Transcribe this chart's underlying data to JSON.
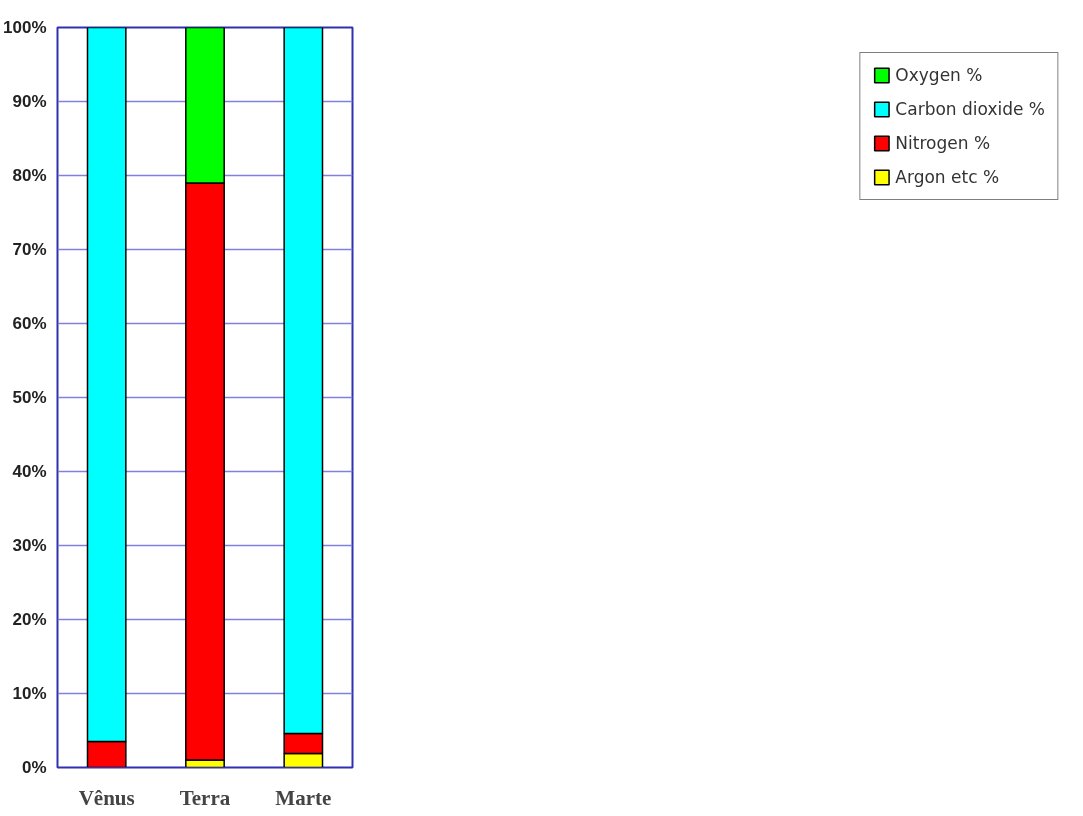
{
  "chart_data": {
    "type": "bar",
    "stacked": true,
    "categories": [
      "Vênus",
      "Terra",
      "Marte"
    ],
    "series": [
      {
        "name": "Argon etc %",
        "color": "#ffff00",
        "values": [
          null,
          1,
          1.9
        ]
      },
      {
        "name": "Nitrogen %",
        "color": "#ff0000",
        "values": [
          3.5,
          78,
          2.7
        ]
      },
      {
        "name": "Carbon dioxide %",
        "color": "#00ffff",
        "values": [
          96.5,
          null,
          95.4
        ]
      },
      {
        "name": "Oxygen %",
        "color": "#00ff00",
        "values": [
          null,
          21,
          null
        ]
      }
    ],
    "ylim": [
      0,
      100
    ],
    "yticks": [
      {
        "value": 0,
        "label": "0%"
      },
      {
        "value": 10,
        "label": "10%"
      },
      {
        "value": 20,
        "label": "20%"
      },
      {
        "value": 30,
        "label": "30%"
      },
      {
        "value": 40,
        "label": "40%"
      },
      {
        "value": 50,
        "label": "50%"
      },
      {
        "value": 60,
        "label": "60%"
      },
      {
        "value": 70,
        "label": "70%"
      },
      {
        "value": 80,
        "label": "80%"
      },
      {
        "value": 90,
        "label": "90%"
      },
      {
        "value": 100,
        "label": "100%"
      }
    ],
    "grid": "y",
    "legend": "right"
  }
}
